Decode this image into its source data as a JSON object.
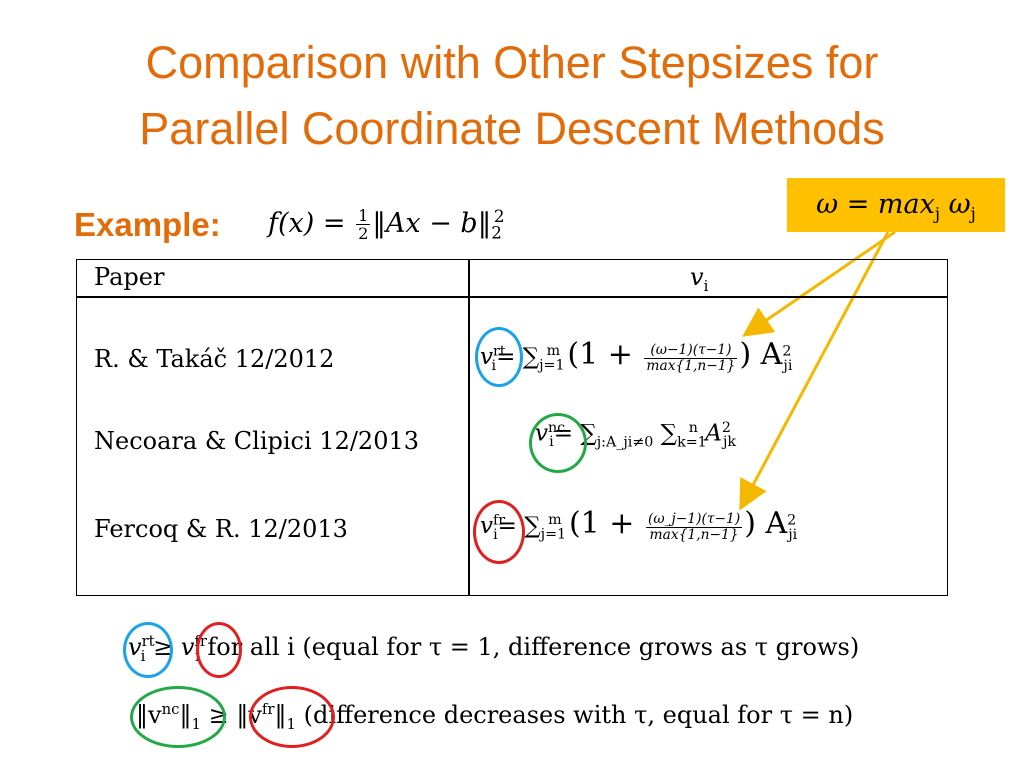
{
  "title": {
    "line1": "Comparison with Other Stepsizes for",
    "line2": "Parallel Coordinate Descent Methods"
  },
  "example": {
    "label": "Example:",
    "formula_lhs": "f(x) = ",
    "frac_num": "1",
    "frac_den": "2",
    "formula_rhs": "‖Ax − b‖",
    "formula_sub": "2",
    "formula_sup": "2"
  },
  "callout": {
    "text": "ω = max",
    "sub": "j",
    "tail": " ω",
    "tail_sub": "j"
  },
  "table": {
    "header_paper": "Paper",
    "header_v": "v",
    "header_v_sub": "i",
    "rows": [
      {
        "paper": "R. & Takáč 12/2012",
        "v": "v",
        "sup": "rt",
        "sub": "i",
        "rhs_start": "= ∑",
        "sum_sub": "j=1",
        "sum_sup": "m",
        "paren_open": "(1 + ",
        "frac_num": "(ω−1)(τ−1)",
        "frac_den": "max{1,n−1}",
        "paren_close": ") A",
        "a_sub": "ji",
        "a_sup": "2"
      },
      {
        "paper": "Necoara & Clipici 12/2013",
        "v": "v",
        "sup": "nc",
        "sub": "i",
        "rhs_start": "= ∑",
        "sum_sub": "j:A_ji≠0",
        "mid": " ∑",
        "sum2_sub": "k=1",
        "sum2_sup": "n",
        "a": " A",
        "a_sub": "jk",
        "a_sup": "2"
      },
      {
        "paper": "Fercoq & R. 12/2013",
        "v": "v",
        "sup": "fr",
        "sub": "i",
        "rhs_start": "= ∑",
        "sum_sub": "j=1",
        "sum_sup": "m",
        "paren_open": "(1 + ",
        "frac_num": "(ω_j−1)(τ−1)",
        "frac_den": "max{1,n−1}",
        "paren_close": ") A",
        "a_sub": "ji",
        "a_sup": "2"
      }
    ]
  },
  "bottom": {
    "line1_rest": "for all i (equal for τ = 1, difference grows as τ grows)",
    "line2_rest": "(difference decreases with τ, equal for τ = n)",
    "geq": "≥",
    "norm_nc": "‖v",
    "norm_nc_sup": "nc",
    "norm_fr": "‖v",
    "norm_fr_sup": "fr",
    "norm_close": "‖",
    "norm_sub": "1"
  },
  "colors": {
    "title": "#e36c0a",
    "callout_bg": "#ffc000",
    "arrow": "#f5b800",
    "circle_rt": "#1aa3e8",
    "circle_nc": "#22a846",
    "circle_fr": "#e02020"
  }
}
